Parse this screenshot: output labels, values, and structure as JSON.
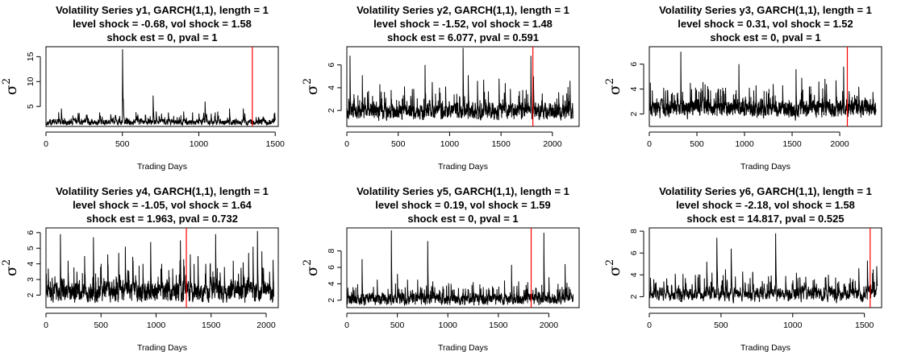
{
  "chart_data": [
    {
      "type": "line",
      "title": [
        "Volatility Series y1, GARCH(1,1), length = 1",
        "level shock = -0.68, vol shock = 1.58",
        "shock est = 0, pval = 1"
      ],
      "xlabel": "Trading Days",
      "ylabel": "σ",
      "ylabel_sup": "2",
      "n": 1500,
      "xlim": [
        0,
        1520
      ],
      "ylim": [
        1,
        17
      ],
      "xticks": [
        0,
        500,
        1000,
        1500
      ],
      "yticks": [
        5,
        10,
        15
      ],
      "base": 1.8,
      "shock_at": 1350,
      "peaks": [
        [
          100,
          4.6
        ],
        [
          175,
          3.2
        ],
        [
          350,
          3.8
        ],
        [
          455,
          3.3
        ],
        [
          500,
          16.5
        ],
        [
          505,
          6.5
        ],
        [
          600,
          3.4
        ],
        [
          700,
          7.2
        ],
        [
          720,
          4.0
        ],
        [
          800,
          3.8
        ],
        [
          900,
          4.0
        ],
        [
          1000,
          3.6
        ],
        [
          1040,
          6.0
        ],
        [
          1050,
          3.5
        ],
        [
          1200,
          4.6
        ],
        [
          1290,
          4.6
        ],
        [
          1300,
          3.6
        ],
        [
          1420,
          3.0
        ]
      ],
      "series": [
        {
          "color": "#000000"
        }
      ],
      "shock_color": "#ff0000"
    },
    {
      "type": "line",
      "title": [
        "Volatility Series y2, GARCH(1,1), length = 1",
        "level shock = -1.52, vol shock = 1.48",
        "shock est = 6.077, pval = 0.591"
      ],
      "xlabel": "Trading Days",
      "ylabel": "σ",
      "ylabel_sup": "2",
      "n": 2200,
      "xlim": [
        0,
        2260
      ],
      "ylim": [
        0.6,
        7.6
      ],
      "xticks": [
        0,
        500,
        1000,
        1500,
        2000
      ],
      "yticks": [
        2,
        4,
        6
      ],
      "base": 1.9,
      "shock_at": 1810,
      "peaks": [
        [
          30,
          6.8
        ],
        [
          150,
          5.1
        ],
        [
          200,
          3.6
        ],
        [
          320,
          4.3
        ],
        [
          430,
          3.8
        ],
        [
          560,
          4.1
        ],
        [
          650,
          3.9
        ],
        [
          760,
          6.0
        ],
        [
          830,
          4.5
        ],
        [
          900,
          4.0
        ],
        [
          960,
          4.1
        ],
        [
          1130,
          7.5
        ],
        [
          1180,
          5.1
        ],
        [
          1270,
          4.6
        ],
        [
          1330,
          4.7
        ],
        [
          1480,
          4.8
        ],
        [
          1540,
          4.4
        ],
        [
          1590,
          3.9
        ],
        [
          1710,
          3.8
        ],
        [
          1790,
          6.8
        ],
        [
          1815,
          5.0
        ],
        [
          1900,
          3.5
        ],
        [
          2060,
          3.6
        ],
        [
          2170,
          4.6
        ]
      ],
      "series": [
        {
          "color": "#000000"
        }
      ],
      "shock_color": "#ff0000"
    },
    {
      "type": "line",
      "title": [
        "Volatility Series y3, GARCH(1,1), length = 1",
        "level shock = 0.31, vol shock = 1.52",
        "shock est = 0, pval = 1"
      ],
      "xlabel": "Trading Days",
      "ylabel": "σ",
      "ylabel_sup": "2",
      "n": 2380,
      "xlim": [
        0,
        2440
      ],
      "ylim": [
        1,
        7.4
      ],
      "xticks": [
        0,
        500,
        1000,
        1500,
        2000
      ],
      "yticks": [
        2,
        4,
        6
      ],
      "base": 2.4,
      "shock_at": 2080,
      "peaks": [
        [
          30,
          3.9
        ],
        [
          150,
          4.1
        ],
        [
          240,
          3.7
        ],
        [
          330,
          7.0
        ],
        [
          430,
          4.5
        ],
        [
          520,
          3.8
        ],
        [
          620,
          4.0
        ],
        [
          700,
          3.7
        ],
        [
          800,
          4.1
        ],
        [
          940,
          6.0
        ],
        [
          1050,
          4.1
        ],
        [
          1120,
          4.3
        ],
        [
          1230,
          3.8
        ],
        [
          1300,
          4.4
        ],
        [
          1400,
          4.3
        ],
        [
          1540,
          5.6
        ],
        [
          1600,
          4.9
        ],
        [
          1680,
          4.2
        ],
        [
          1780,
          4.6
        ],
        [
          1860,
          4.4
        ],
        [
          1960,
          4.7
        ],
        [
          2040,
          5.8
        ],
        [
          2100,
          3.6
        ],
        [
          2200,
          3.9
        ],
        [
          2320,
          3.2
        ]
      ],
      "series": [
        {
          "color": "#000000"
        }
      ],
      "shock_color": "#ff0000"
    },
    {
      "type": "line",
      "title": [
        "Volatility Series y4, GARCH(1,1), length = 1",
        "level shock = -1.05, vol shock = 1.64",
        "shock est = 1.963, pval = 0.732"
      ],
      "xlabel": "Trading Days",
      "ylabel": "σ",
      "ylabel_sup": "2",
      "n": 2070,
      "xlim": [
        0,
        2110
      ],
      "ylim": [
        1.2,
        6.3
      ],
      "xticks": [
        0,
        500,
        1000,
        1500,
        2000
      ],
      "yticks": [
        2,
        3,
        4,
        5,
        6
      ],
      "base": 2.2,
      "shock_at": 1275,
      "peaks": [
        [
          20,
          3.7
        ],
        [
          80,
          3.2
        ],
        [
          130,
          5.9
        ],
        [
          200,
          4.2
        ],
        [
          280,
          3.5
        ],
        [
          350,
          4.5
        ],
        [
          430,
          5.7
        ],
        [
          500,
          4.0
        ],
        [
          560,
          4.6
        ],
        [
          660,
          4.7
        ],
        [
          720,
          5.1
        ],
        [
          790,
          4.2
        ],
        [
          880,
          4.0
        ],
        [
          950,
          5.4
        ],
        [
          1050,
          4.0
        ],
        [
          1150,
          3.7
        ],
        [
          1220,
          5.5
        ],
        [
          1250,
          4.3
        ],
        [
          1310,
          4.6
        ],
        [
          1380,
          4.5
        ],
        [
          1450,
          4.0
        ],
        [
          1540,
          5.9
        ],
        [
          1620,
          3.8
        ],
        [
          1700,
          4.2
        ],
        [
          1790,
          4.1
        ],
        [
          1840,
          4.7
        ],
        [
          1880,
          5.1
        ],
        [
          1920,
          6.1
        ],
        [
          1960,
          4.8
        ],
        [
          2030,
          3.5
        ]
      ],
      "series": [
        {
          "color": "#000000"
        }
      ],
      "shock_color": "#ff0000"
    },
    {
      "type": "line",
      "title": [
        "Volatility Series y5, GARCH(1,1), length = 1",
        "level shock = 0.19, vol shock = 1.59",
        "shock est = 0, pval = 1"
      ],
      "xlabel": "Trading Days",
      "ylabel": "σ",
      "ylabel_sup": "2",
      "n": 2240,
      "xlim": [
        0,
        2300
      ],
      "ylim": [
        1.1,
        10.8
      ],
      "xticks": [
        0,
        500,
        1000,
        1500,
        2000
      ],
      "yticks": [
        2,
        4,
        6,
        8
      ],
      "base": 2.1,
      "shock_at": 1825,
      "peaks": [
        [
          60,
          3.6
        ],
        [
          150,
          7.0
        ],
        [
          300,
          4.5
        ],
        [
          440,
          10.5
        ],
        [
          500,
          5.2
        ],
        [
          600,
          4.5
        ],
        [
          700,
          4.5
        ],
        [
          800,
          9.2
        ],
        [
          850,
          4.3
        ],
        [
          950,
          3.7
        ],
        [
          1050,
          3.3
        ],
        [
          1150,
          3.4
        ],
        [
          1250,
          4.2
        ],
        [
          1350,
          3.6
        ],
        [
          1450,
          3.5
        ],
        [
          1560,
          4.4
        ],
        [
          1630,
          6.3
        ],
        [
          1700,
          4.3
        ],
        [
          1790,
          4.2
        ],
        [
          1950,
          10.2
        ],
        [
          2000,
          4.8
        ],
        [
          2090,
          4.0
        ],
        [
          2160,
          6.4
        ],
        [
          2220,
          2.8
        ]
      ],
      "series": [
        {
          "color": "#000000"
        }
      ],
      "shock_color": "#ff0000"
    },
    {
      "type": "line",
      "title": [
        "Volatility Series y6, GARCH(1,1), length = 1",
        "level shock = -2.18, vol shock = 1.58",
        "shock est = 14.817, pval = 0.525"
      ],
      "xlabel": "Trading Days",
      "ylabel": "σ",
      "ylabel_sup": "2",
      "n": 1590,
      "xlim": [
        0,
        1620
      ],
      "ylim": [
        1,
        8.3
      ],
      "xticks": [
        0,
        500,
        1000,
        1500
      ],
      "yticks": [
        2,
        4,
        6,
        8
      ],
      "base": 2.2,
      "shock_at": 1540,
      "peaks": [
        [
          30,
          3.6
        ],
        [
          100,
          3.4
        ],
        [
          180,
          4.1
        ],
        [
          250,
          3.7
        ],
        [
          320,
          4.0
        ],
        [
          400,
          5.2
        ],
        [
          470,
          7.4
        ],
        [
          530,
          4.5
        ],
        [
          570,
          6.4
        ],
        [
          650,
          4.3
        ],
        [
          720,
          3.5
        ],
        [
          800,
          3.2
        ],
        [
          880,
          7.8
        ],
        [
          950,
          3.9
        ],
        [
          1000,
          3.5
        ],
        [
          1080,
          3.3
        ],
        [
          1150,
          3.6
        ],
        [
          1230,
          3.8
        ],
        [
          1320,
          3.4
        ],
        [
          1400,
          3.7
        ],
        [
          1460,
          4.6
        ],
        [
          1520,
          5.3
        ],
        [
          1560,
          4.5
        ],
        [
          1585,
          4.8
        ]
      ],
      "series": [
        {
          "color": "#000000"
        }
      ],
      "shock_color": "#ff0000"
    }
  ]
}
